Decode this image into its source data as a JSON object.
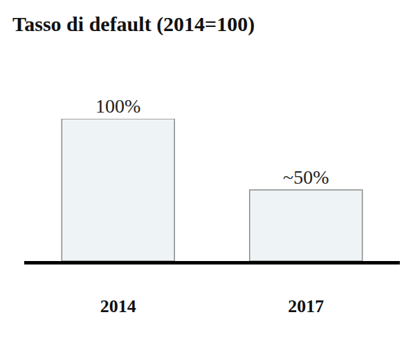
{
  "chart_data": {
    "type": "bar",
    "title": "Tasso di default (2014=100)",
    "categories": [
      "2014",
      "2017"
    ],
    "values": [
      100,
      50
    ],
    "value_labels": [
      "100%",
      "~50%"
    ],
    "color": "#eef3f5",
    "ylim": [
      0,
      100
    ],
    "data_labels": true,
    "tick_labels": "x"
  }
}
